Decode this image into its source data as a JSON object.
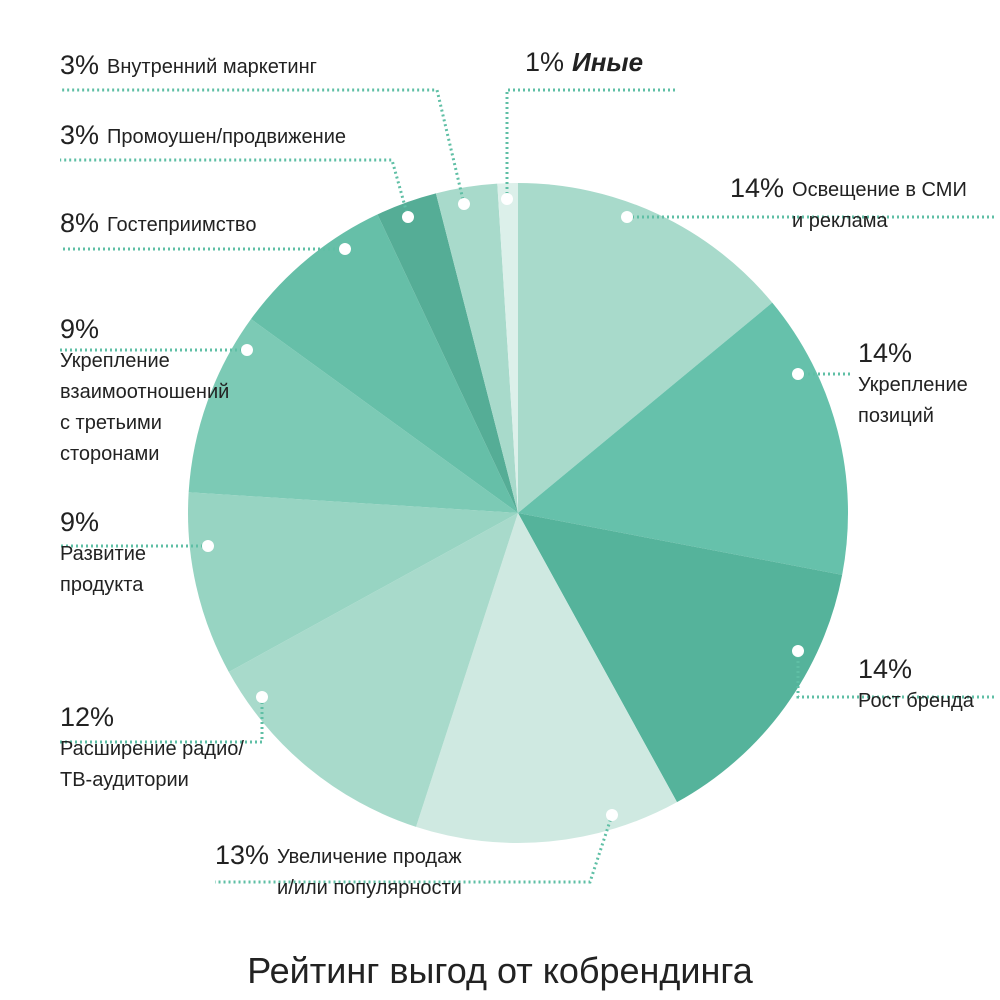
{
  "chart_data": {
    "type": "pie",
    "title": "Рейтинг выгод от кобрендинга",
    "categories": [
      "Освещение в СМИ\nи реклама",
      "Укрепление\nпозиций",
      "Рост бренда",
      "Увеличение продаж\nи/или популярности",
      "Расширение радио/\nТВ-аудитории",
      "Развитие\nпродукта",
      "Укрепление\nвзаимоотношений\nс третьими\nсторонами",
      "Гостеприимство",
      "Промоушен/продвижение",
      "Внутренний маркетинг",
      "Иные"
    ],
    "values": [
      14,
      14,
      14,
      13,
      12,
      9,
      9,
      8,
      3,
      3,
      1
    ],
    "value_labels": [
      "14%",
      "14%",
      "14%",
      "13%",
      "12%",
      "9%",
      "9%",
      "8%",
      "3%",
      "3%",
      "1%"
    ],
    "colors": [
      "#a8dacb",
      "#66c1ab",
      "#55b39b",
      "#cfe9e1",
      "#a8dacb",
      "#97d4c2",
      "#7ccab5",
      "#66bfa8",
      "#55ad96",
      "#a8dacb",
      "#dcf0ea"
    ]
  }
}
